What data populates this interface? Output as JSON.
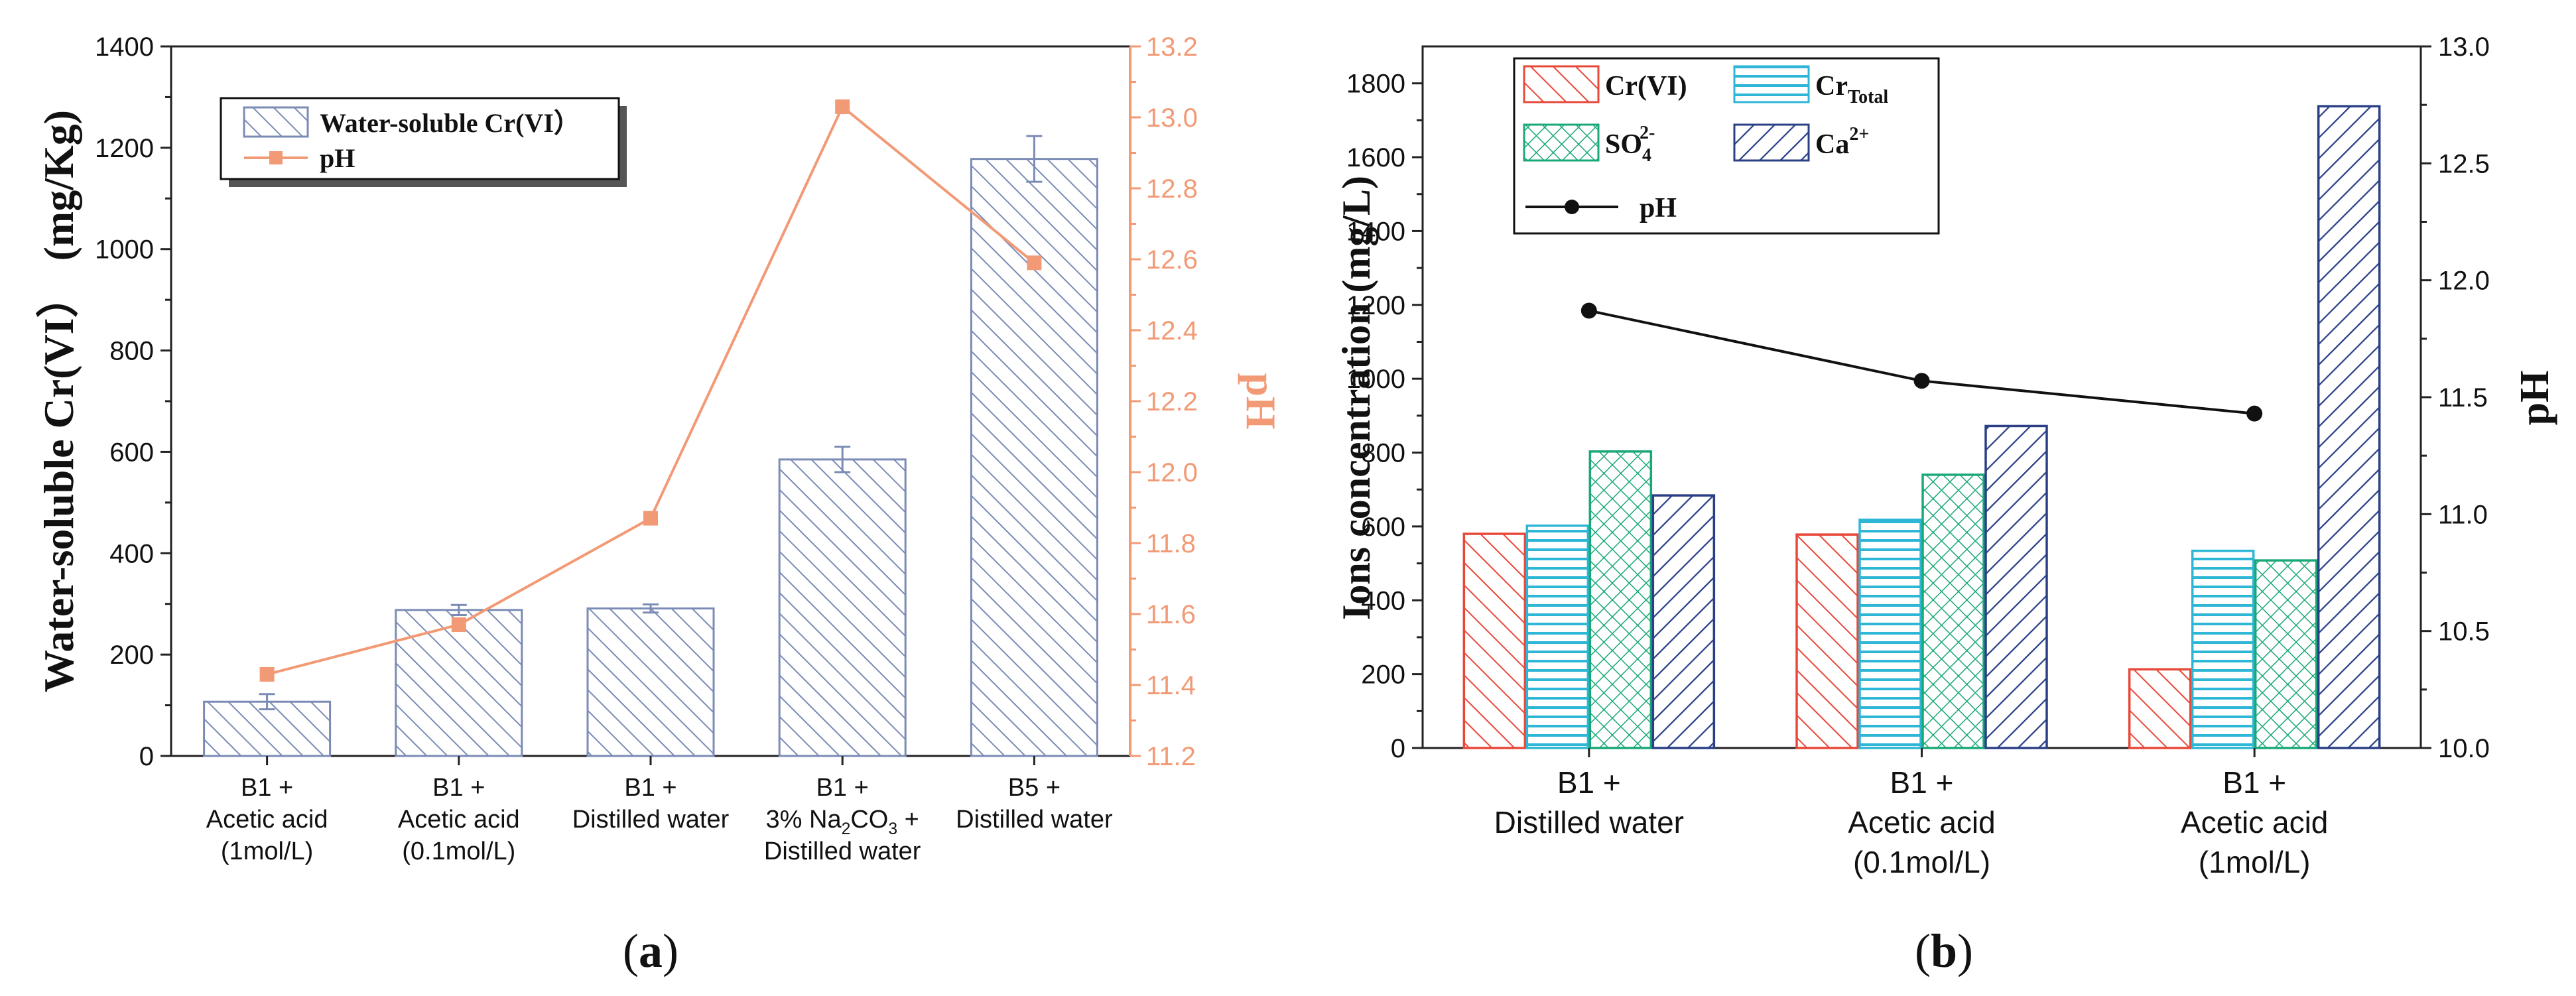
{
  "chart_data": [
    {
      "panel": "a",
      "type": "bar",
      "caption": "(a)",
      "categories": [
        [
          "B1 +",
          "Acetic acid",
          "(1mol/L)"
        ],
        [
          "B1 +",
          "Acetic acid",
          "(0.1mol/L)"
        ],
        [
          "B1 +",
          "Distilled water"
        ],
        [
          "B1 +",
          "3% Na2CO3 +",
          "Distilled water"
        ],
        [
          "B5 +",
          "Distilled water"
        ]
      ],
      "series": [
        {
          "name": "Water-soluble Cr(VI）",
          "axis": "left",
          "kind": "bar",
          "values": [
            107,
            288,
            291,
            585,
            1178
          ],
          "errors": [
            15,
            10,
            8,
            25,
            45
          ],
          "color": "#7b8bb5"
        },
        {
          "name": "pH",
          "axis": "right",
          "kind": "line",
          "values": [
            11.43,
            11.57,
            11.87,
            13.03,
            12.59
          ],
          "color": "#f29a76"
        }
      ],
      "ylabel": "Water-soluble Cr(VI）（mg/Kg）",
      "ylabel_main": "Water-soluble Cr(VI）",
      "ylabel_unit": "(mg/Kg)",
      "y2label": "pH",
      "ylim": [
        0,
        1400
      ],
      "yticks": [
        "0",
        "200",
        "400",
        "600",
        "800",
        "1000",
        "1200",
        "1400"
      ],
      "y2lim": [
        11.2,
        13.2
      ],
      "y2ticks": [
        "11.2",
        "11.4",
        "11.6",
        "11.8",
        "12.0",
        "12.2",
        "12.4",
        "12.6",
        "12.8",
        "13.0",
        "13.2"
      ],
      "legend": [
        "Water-soluble Cr(VI）",
        "pH"
      ],
      "legend_position": "top-left",
      "grid": false
    },
    {
      "panel": "b",
      "type": "bar",
      "caption": "(b)",
      "categories": [
        [
          "B1 +",
          "Distilled water"
        ],
        [
          "B1 +",
          "Acetic acid",
          "(0.1mol/L)"
        ],
        [
          "B1 +",
          "Acetic acid",
          "(1mol/L)"
        ]
      ],
      "series": [
        {
          "name": "Cr(VI)",
          "axis": "left",
          "kind": "bar",
          "values": [
            580,
            578,
            213
          ],
          "color": "#e8483a",
          "pattern": "diag"
        },
        {
          "name": "CrTotal",
          "axis": "left",
          "kind": "bar",
          "values": [
            602,
            618,
            534
          ],
          "color": "#2eb6d6",
          "pattern": "horiz"
        },
        {
          "name": "SO42-",
          "axis": "left",
          "kind": "bar",
          "values": [
            803,
            740,
            508
          ],
          "color": "#1aa878",
          "pattern": "cross"
        },
        {
          "name": "Ca2+",
          "axis": "left",
          "kind": "bar",
          "values": [
            684,
            872,
            1738
          ],
          "color": "#2a3f86",
          "pattern": "diag2"
        },
        {
          "name": "pH",
          "axis": "right",
          "kind": "line",
          "values": [
            11.87,
            11.57,
            11.43
          ],
          "color": "#111111"
        }
      ],
      "legend": {
        "crvi": "Cr(VI)",
        "crtotal_base": "Cr",
        "crtotal_sub": "Total",
        "so4_base": "SO",
        "so4_sub": "4",
        "so4_sup": "2-",
        "ca_base": "Ca",
        "ca_sup": "2+",
        "ph": "pH"
      },
      "ylabel": "Ions concentration (mg/L)",
      "y2label": "pH",
      "ylim": [
        0,
        1900
      ],
      "yticks": [
        "0",
        "200",
        "400",
        "600",
        "800",
        "1000",
        "1200",
        "1400",
        "1600",
        "1800"
      ],
      "y2lim": [
        10.0,
        13.0
      ],
      "y2ticks": [
        "10.0",
        "10.5",
        "11.0",
        "11.5",
        "12.0",
        "12.5",
        "13.0"
      ],
      "legend_position": "top-left",
      "grid": false
    }
  ]
}
